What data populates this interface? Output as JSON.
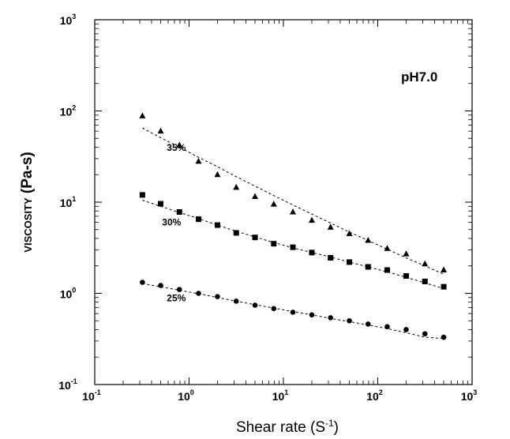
{
  "chart_data": {
    "type": "scatter",
    "title": "",
    "annotation": "pH7.0",
    "xlabel": "Shear  rate (S",
    "xlabel_sup": "-1",
    "xlabel_end": ")",
    "ylabel_small": "VISCOSITY",
    "ylabel_big": " (Pa-s)",
    "xscale": "log",
    "yscale": "log",
    "xlim": [
      0.1,
      1000
    ],
    "ylim": [
      0.1,
      1000
    ],
    "x_ticks": [
      {
        "base": "10",
        "exp": "-1"
      },
      {
        "base": "10",
        "exp": "0"
      },
      {
        "base": "10",
        "exp": "1"
      },
      {
        "base": "10",
        "exp": "2"
      },
      {
        "base": "10",
        "exp": "3"
      }
    ],
    "y_ticks": [
      {
        "base": "10",
        "exp": "-1"
      },
      {
        "base": "10",
        "exp": "0"
      },
      {
        "base": "10",
        "exp": "1"
      },
      {
        "base": "10",
        "exp": "2"
      },
      {
        "base": "10",
        "exp": "3"
      }
    ],
    "grid": false,
    "legend": "none",
    "series": [
      {
        "label": "35%",
        "marker": "triangle",
        "x": [
          0.32,
          0.5,
          0.79,
          1.26,
          2.0,
          3.16,
          5.0,
          7.9,
          12.6,
          20,
          31.6,
          50,
          79,
          126,
          200,
          316,
          500
        ],
        "y": [
          88,
          60,
          42,
          28,
          20,
          14.5,
          11.5,
          9.5,
          7.8,
          6.3,
          5.3,
          4.5,
          3.8,
          3.1,
          2.7,
          2.1,
          1.8
        ],
        "fit_y": [
          65,
          51,
          40,
          31,
          24.5,
          19,
          15,
          11.8,
          9.3,
          7.4,
          5.9,
          4.7,
          3.8,
          3.05,
          2.45,
          2.0,
          1.62
        ]
      },
      {
        "label": "30%",
        "marker": "square",
        "x": [
          0.32,
          0.5,
          0.79,
          1.26,
          2.0,
          3.16,
          5.0,
          7.9,
          12.6,
          20,
          31.6,
          50,
          79,
          126,
          200,
          316,
          500
        ],
        "y": [
          12,
          9.6,
          7.8,
          6.5,
          5.6,
          4.6,
          4.1,
          3.5,
          3.2,
          2.8,
          2.45,
          2.2,
          1.95,
          1.8,
          1.55,
          1.35,
          1.18
        ],
        "fit_y": [
          10.5,
          9.0,
          7.7,
          6.6,
          5.6,
          4.8,
          4.15,
          3.6,
          3.15,
          2.8,
          2.5,
          2.2,
          1.95,
          1.72,
          1.5,
          1.3,
          1.13
        ]
      },
      {
        "label": "25%",
        "marker": "circle",
        "x": [
          0.32,
          0.5,
          0.79,
          1.26,
          2.0,
          3.16,
          5.0,
          7.9,
          12.6,
          20,
          31.6,
          50,
          79,
          126,
          200,
          316,
          500
        ],
        "y": [
          1.32,
          1.22,
          1.1,
          1.0,
          0.92,
          0.82,
          0.74,
          0.68,
          0.62,
          0.58,
          0.54,
          0.5,
          0.46,
          0.43,
          0.4,
          0.36,
          0.33
        ],
        "fit_y": [
          1.28,
          1.18,
          1.08,
          0.99,
          0.9,
          0.82,
          0.75,
          0.69,
          0.63,
          0.58,
          0.53,
          0.49,
          0.45,
          0.41,
          0.37,
          0.33,
          0.32
        ]
      }
    ]
  }
}
